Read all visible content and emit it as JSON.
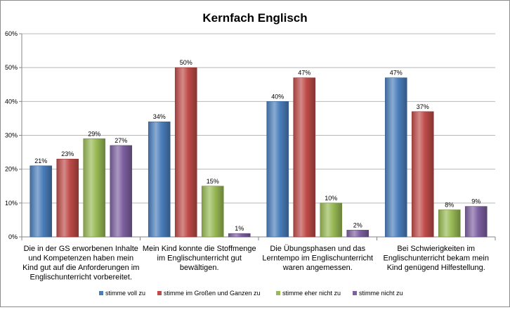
{
  "chart_data": {
    "type": "bar",
    "title": "Kernfach Englisch",
    "xlabel": "",
    "ylabel": "",
    "ylim": [
      0,
      60
    ],
    "yticks": [
      "0%",
      "10%",
      "20%",
      "30%",
      "40%",
      "50%",
      "60%"
    ],
    "grid": true,
    "legend_position": "bottom",
    "value_suffix": "%",
    "categories": [
      [
        "Die in der GS erworbenen Inhalte",
        "und Kompetenzen haben mein",
        "Kind gut auf die Anforderungen im",
        "Englischunterricht vorbereitet."
      ],
      [
        "Mein Kind konnte die Stoffmenge",
        "im Englischunterricht gut",
        "bewältigen."
      ],
      [
        "Die Übungsphasen und das",
        "Lerntempo im Englischunterricht",
        "waren angemessen."
      ],
      [
        "Bei Schwierigkeiten im",
        "Englischunterricht bekam mein",
        "Kind genügend Hilfestellung."
      ]
    ],
    "series": [
      {
        "name": "stimme voll zu",
        "color": "#4a7ebb",
        "values": [
          21,
          34,
          40,
          47
        ]
      },
      {
        "name": "stimme im Großen und Ganzen zu",
        "color": "#be4b48",
        "values": [
          23,
          50,
          47,
          37
        ]
      },
      {
        "name": "stimme eher nicht zu",
        "color": "#98b954",
        "values": [
          29,
          15,
          10,
          8
        ]
      },
      {
        "name": "stimme nicht zu",
        "color": "#7d60a0",
        "values": [
          27,
          1,
          2,
          9
        ]
      }
    ]
  }
}
